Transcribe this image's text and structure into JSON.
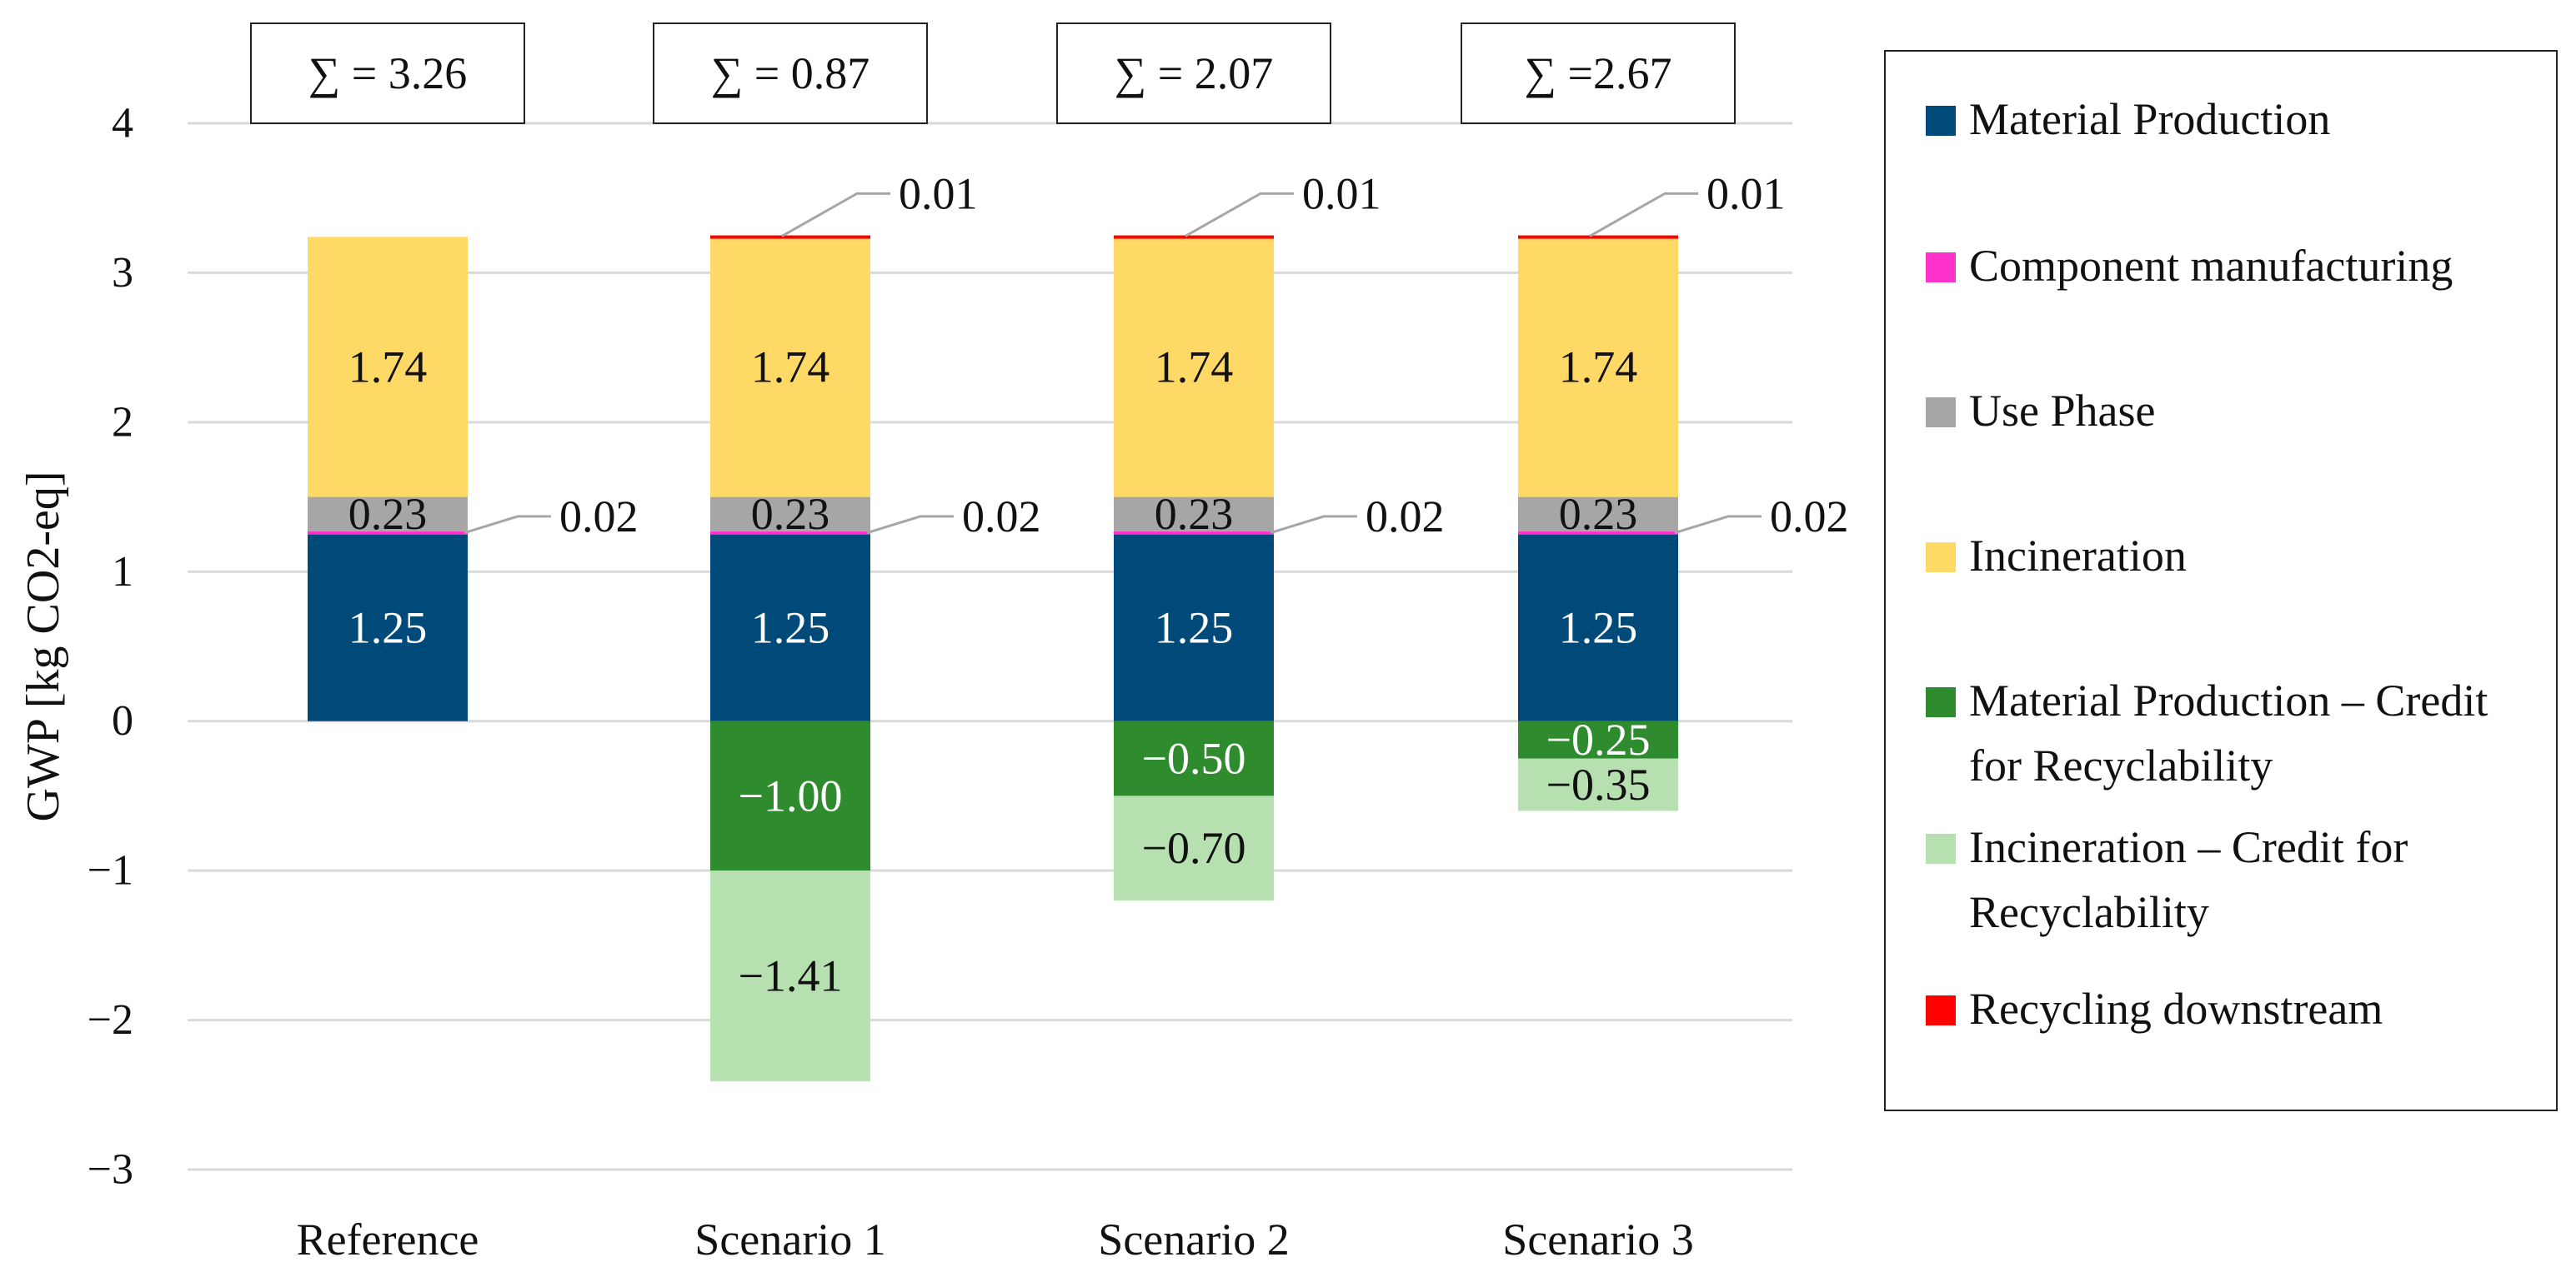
{
  "chart_data": {
    "type": "bar",
    "stacked": true,
    "categories": [
      "Reference",
      "Scenario 1",
      "Scenario 2",
      "Scenario 3"
    ],
    "ylabel": "GWP [kg CO2-eq]",
    "ylim": [
      -3,
      4
    ],
    "yticks": [
      -3,
      -2,
      -1,
      0,
      1,
      2,
      3,
      4
    ],
    "ytick_labels": [
      "−3",
      "−2",
      "−1",
      "0",
      "1",
      "2",
      "3",
      "4"
    ],
    "grid": true,
    "legend_position": "right",
    "sums": [
      "∑ = 3.26",
      "∑ = 0.87",
      "∑ = 2.07",
      "∑ =2.67"
    ],
    "series": [
      {
        "name": "Material Production",
        "color": "#004a7a",
        "label_color": "#ffffff",
        "values": [
          1.25,
          1.25,
          1.25,
          1.25
        ],
        "labels": [
          "1.25",
          "1.25",
          "1.25",
          "1.25"
        ]
      },
      {
        "name": "Component manufacturing",
        "color": "#ff33cc",
        "label_color": "#111111",
        "values": [
          0.02,
          0.02,
          0.02,
          0.02
        ],
        "labels": [
          "0.02",
          "0.02",
          "0.02",
          "0.02"
        ]
      },
      {
        "name": "Use Phase",
        "color": "#a6a6a6",
        "label_color": "#111111",
        "values": [
          0.23,
          0.23,
          0.23,
          0.23
        ],
        "labels": [
          "0.23",
          "0.23",
          "0.23",
          "0.23"
        ]
      },
      {
        "name": "Incineration",
        "color": "#ffd966",
        "label_color": "#111111",
        "values": [
          1.74,
          1.74,
          1.74,
          1.74
        ],
        "labels": [
          "1.74",
          "1.74",
          "1.74",
          "1.74"
        ]
      },
      {
        "name": "Material Production – Credit for Recyclability",
        "color": "#2e8b2e",
        "label_color": "#ffffff",
        "values": [
          0,
          -1.0,
          -0.5,
          -0.25
        ],
        "labels": [
          "",
          "−1.00",
          "−0.50",
          "−0.25"
        ]
      },
      {
        "name": "Incineration – Credit for Recyclability",
        "color": "#b6e0b0",
        "label_color": "#111111",
        "values": [
          0,
          -1.41,
          -0.7,
          -0.35
        ],
        "labels": [
          "",
          "−1.41",
          "−0.70",
          "−0.35"
        ]
      },
      {
        "name": "Recycling downstream",
        "color": "#ff0000",
        "label_color": "#111111",
        "values": [
          0,
          0.01,
          0.01,
          0.01
        ],
        "labels": [
          "",
          "0.01",
          "0.01",
          "0.01"
        ]
      }
    ],
    "legend": [
      "Material Production",
      "Component manufacturing",
      "Use Phase",
      "Incineration",
      "Material Production – Credit for Recyclability",
      "Incineration – Credit for Recyclability",
      "Recycling downstream"
    ]
  }
}
